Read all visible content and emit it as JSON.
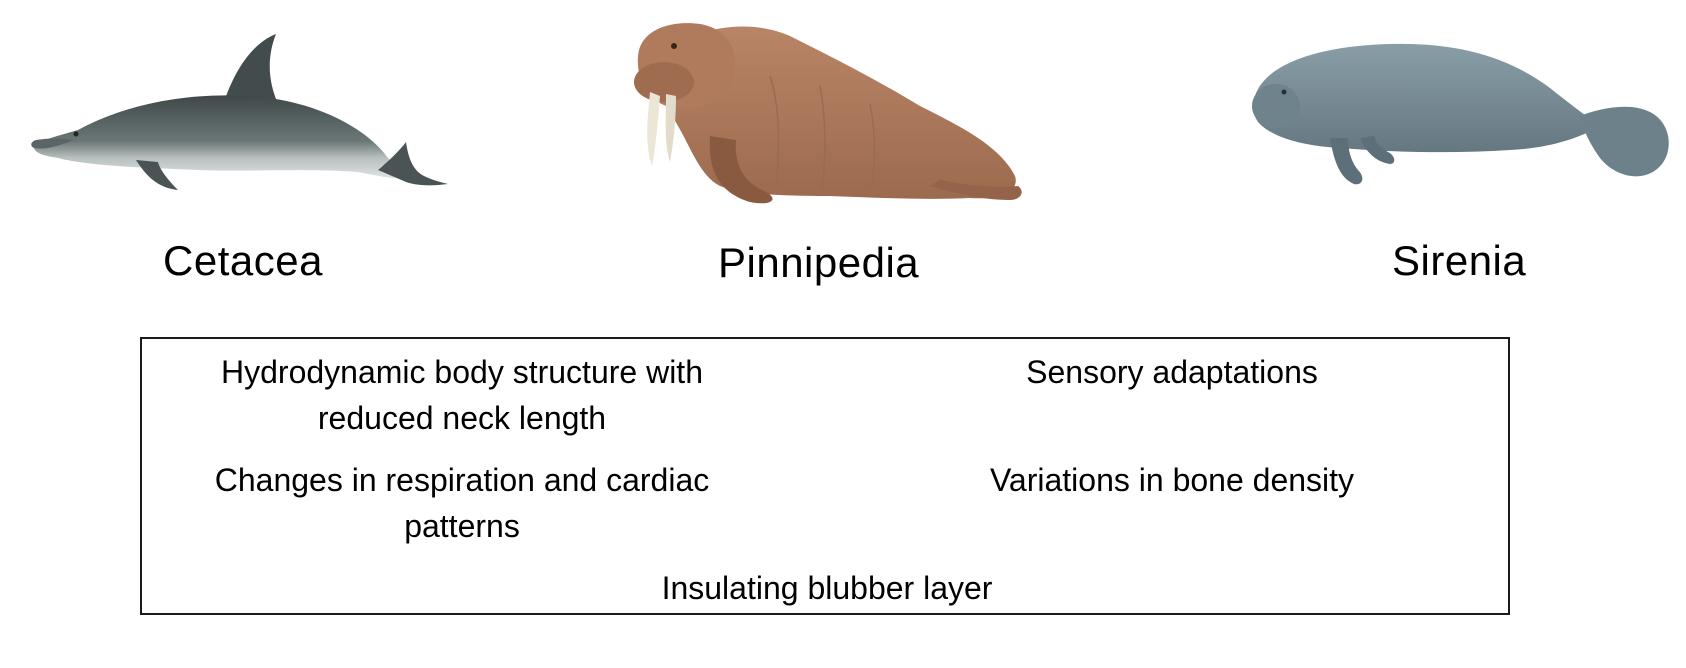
{
  "groups": [
    {
      "label": "Cetacea",
      "animal": "dolphin"
    },
    {
      "label": "Pinnipedia",
      "animal": "walrus"
    },
    {
      "label": "Sirenia",
      "animal": "manatee"
    }
  ],
  "traits": {
    "hydrodynamic": "Hydrodynamic body structure with reduced neck length",
    "sensory": "Sensory adaptations",
    "respiration": "Changes in respiration and cardiac patterns",
    "bone_density": "Variations in bone density",
    "blubber": "Insulating blubber layer"
  },
  "colors": {
    "dolphin_dark": "#4f5a5b",
    "dolphin_light": "#c9cfcf",
    "walrus_body": "#b07a5c",
    "walrus_shadow": "#8a5a40",
    "tusk": "#ece6d6",
    "manatee_body": "#7b8f98",
    "manatee_shadow": "#5d6f78",
    "box_border": "#1a1a1a"
  }
}
